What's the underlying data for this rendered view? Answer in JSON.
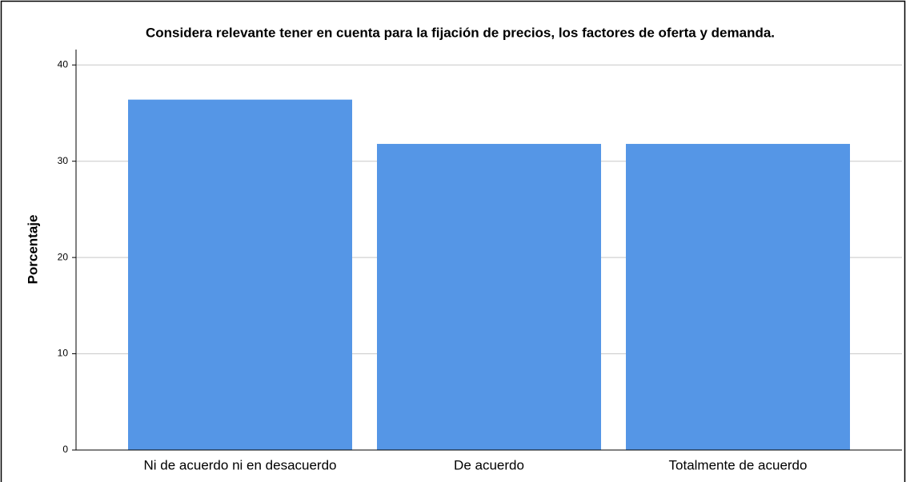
{
  "chart_data": {
    "type": "bar",
    "title": "Considera relevante tener en cuenta para la fijación de precios, los factores de oferta y demanda.",
    "y_label": "Porcentaje",
    "categories": [
      "Ni de acuerdo ni en desacuerdo",
      "De acuerdo",
      "Totalmente de acuerdo"
    ],
    "values": [
      36.4,
      31.8,
      31.8
    ],
    "color": "#5596e6",
    "ylim": [
      0,
      41.6
    ],
    "yticks": [
      0,
      10,
      20,
      30,
      40
    ],
    "grid": true
  }
}
